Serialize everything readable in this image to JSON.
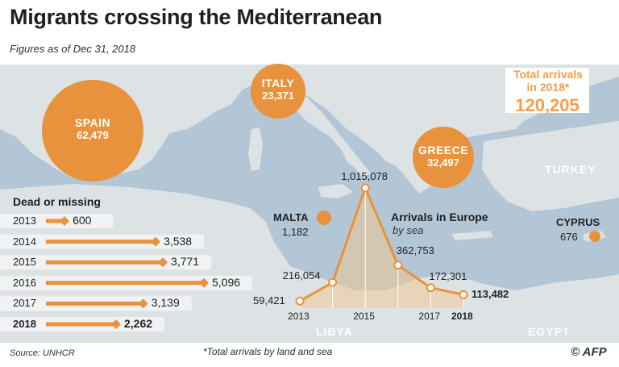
{
  "title": "Migrants crossing the Mediterranean",
  "subtitle": "Figures as of  Dec 31, 2018",
  "colors": {
    "orange": "#e9923d",
    "sea": "#a9bfd1",
    "land": "#dfe3e4",
    "light_orange": "#f0a04b"
  },
  "bubbles": [
    {
      "id": "spain",
      "name": "SPAIN",
      "value": "62,479",
      "arrivals": 62479
    },
    {
      "id": "italy",
      "name": "ITALY",
      "value": "23,371",
      "arrivals": 23371
    },
    {
      "id": "greece",
      "name": "GREECE",
      "value": "32,497",
      "arrivals": 32497
    }
  ],
  "malta": {
    "name": "MALTA",
    "value": "1,182"
  },
  "cyprus": {
    "name": "CYPRUS",
    "value": "676"
  },
  "total": {
    "label": "Total arrivals in 2018*",
    "value": "120,205"
  },
  "countries": {
    "turkey": "TURKEY",
    "libya": "LIBYA",
    "egypt": "EGYPT"
  },
  "dead_missing": {
    "title": "Dead or missing",
    "rows": [
      {
        "year": "2013",
        "label": "600",
        "value": 600,
        "bold": false
      },
      {
        "year": "2014",
        "label": "3,538",
        "value": 3538,
        "bold": false
      },
      {
        "year": "2015",
        "label": "3,771",
        "value": 3771,
        "bold": false
      },
      {
        "year": "2016",
        "label": "5,096",
        "value": 5096,
        "bold": false
      },
      {
        "year": "2017",
        "label": "3,139",
        "value": 3139,
        "bold": false
      },
      {
        "year": "2018",
        "label": "2,262",
        "value": 2262,
        "bold": true
      }
    ]
  },
  "arrivals_chart": {
    "title": "Arrivals in Europe",
    "subtitle": "by sea",
    "points": [
      {
        "year": 2013,
        "label": "59,421",
        "value": 59421
      },
      {
        "year": 2014,
        "label": "216,054",
        "value": 216054
      },
      {
        "year": 2015,
        "label": "1,015,078",
        "value": 1015078
      },
      {
        "year": 2016,
        "label": "362,753",
        "value": 362753
      },
      {
        "year": 2017,
        "label": "172,301",
        "value": 172301
      },
      {
        "year": 2018,
        "label": "113,482",
        "value": 113482
      }
    ],
    "year_labels": [
      "2013",
      "2015",
      "2017",
      "2018"
    ]
  },
  "chart_data": [
    {
      "type": "bar",
      "title": "Dead or missing",
      "categories": [
        "2013",
        "2014",
        "2015",
        "2016",
        "2017",
        "2018"
      ],
      "values": [
        600,
        3538,
        3771,
        5096,
        3139,
        2262
      ]
    },
    {
      "type": "line",
      "title": "Arrivals in Europe",
      "subtitle": "by sea",
      "x": [
        2013,
        2014,
        2015,
        2016,
        2017,
        2018
      ],
      "y": [
        59421,
        216054,
        1015078,
        362753,
        172301,
        113482
      ]
    }
  ],
  "footer": {
    "source": "Source: UNHCR",
    "footnote": "*Total arrivals by land and sea",
    "credit": "© AFP"
  }
}
